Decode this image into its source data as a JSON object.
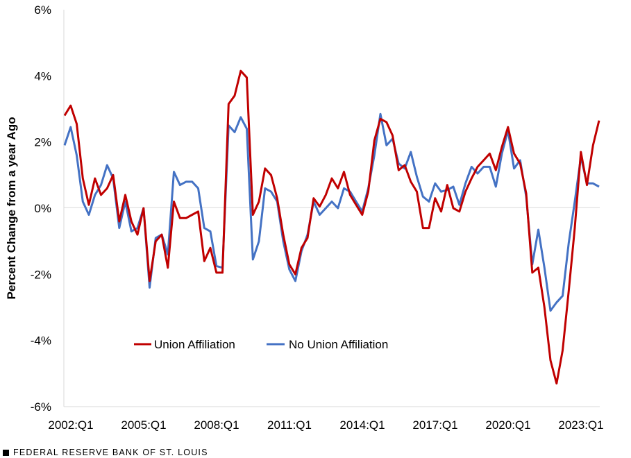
{
  "footer": {
    "source": "FEDERAL RESERVE BANK OF ST. LOUIS"
  },
  "chart_data": {
    "type": "line",
    "ylabel": "Percent Change from a year Ago",
    "ylim": [
      -6,
      6
    ],
    "yticks": [
      6,
      4,
      2,
      0,
      -2,
      -4,
      -6
    ],
    "ytick_labels": [
      "6%",
      "4%",
      "2%",
      "0%",
      "-2%",
      "-4%",
      "-6%"
    ],
    "xtick_labels": [
      "2002:Q1",
      "2005:Q1",
      "2008:Q1",
      "2011:Q1",
      "2014:Q1",
      "2017:Q1",
      "2020:Q1",
      "2023:Q1"
    ],
    "grid": "horizontal zero line only",
    "legend_position": "bottom-center inside plot",
    "series": [
      {
        "name": "Union Affiliation",
        "color": "#C00000",
        "values": [
          2.8,
          3.1,
          2.55,
          0.9,
          0.1,
          0.9,
          0.4,
          0.6,
          1.0,
          -0.4,
          0.4,
          -0.4,
          -0.8,
          0.0,
          -2.2,
          -1.0,
          -0.8,
          -1.8,
          0.2,
          -0.3,
          -0.3,
          -0.2,
          -0.1,
          -1.6,
          -1.2,
          -1.95,
          -1.95,
          3.15,
          3.4,
          4.15,
          3.95,
          -0.2,
          0.2,
          1.2,
          1.0,
          0.3,
          -0.8,
          -1.7,
          -2.0,
          -1.2,
          -0.9,
          0.3,
          0.05,
          0.4,
          0.9,
          0.6,
          1.1,
          0.4,
          0.1,
          -0.2,
          0.5,
          2.05,
          2.7,
          2.6,
          2.2,
          1.15,
          1.3,
          0.8,
          0.5,
          -0.6,
          -0.6,
          0.3,
          -0.1,
          0.7,
          0.0,
          -0.1,
          0.5,
          0.9,
          1.25,
          1.45,
          1.65,
          1.15,
          1.85,
          2.45,
          1.65,
          1.35,
          0.45,
          -1.95,
          -1.8,
          -3.0,
          -4.6,
          -5.3,
          -4.3,
          -2.5,
          -0.6,
          1.7,
          0.7,
          1.9,
          2.65
        ]
      },
      {
        "name": "No Union Affiliation",
        "color": "#4472C4",
        "values": [
          1.9,
          2.45,
          1.6,
          0.2,
          -0.2,
          0.4,
          0.7,
          1.3,
          0.9,
          -0.6,
          0.2,
          -0.7,
          -0.6,
          0.0,
          -2.4,
          -0.9,
          -0.8,
          -1.4,
          1.1,
          0.7,
          0.8,
          0.8,
          0.6,
          -0.6,
          -0.7,
          -1.75,
          -1.8,
          2.5,
          2.3,
          2.75,
          2.4,
          -1.55,
          -1.0,
          0.6,
          0.5,
          0.2,
          -1.0,
          -1.85,
          -2.2,
          -1.3,
          -0.8,
          0.2,
          -0.2,
          0.0,
          0.2,
          0.0,
          0.6,
          0.5,
          0.2,
          -0.1,
          0.6,
          1.6,
          2.85,
          1.9,
          2.1,
          1.35,
          1.2,
          1.7,
          0.95,
          0.35,
          0.2,
          0.75,
          0.5,
          0.55,
          0.65,
          0.1,
          0.75,
          1.25,
          1.05,
          1.25,
          1.25,
          0.65,
          1.65,
          2.35,
          1.2,
          1.45,
          0.35,
          -1.7,
          -0.65,
          -1.8,
          -3.1,
          -2.85,
          -2.65,
          -1.05,
          0.2,
          1.55,
          0.75,
          0.75,
          0.65
        ]
      }
    ]
  }
}
